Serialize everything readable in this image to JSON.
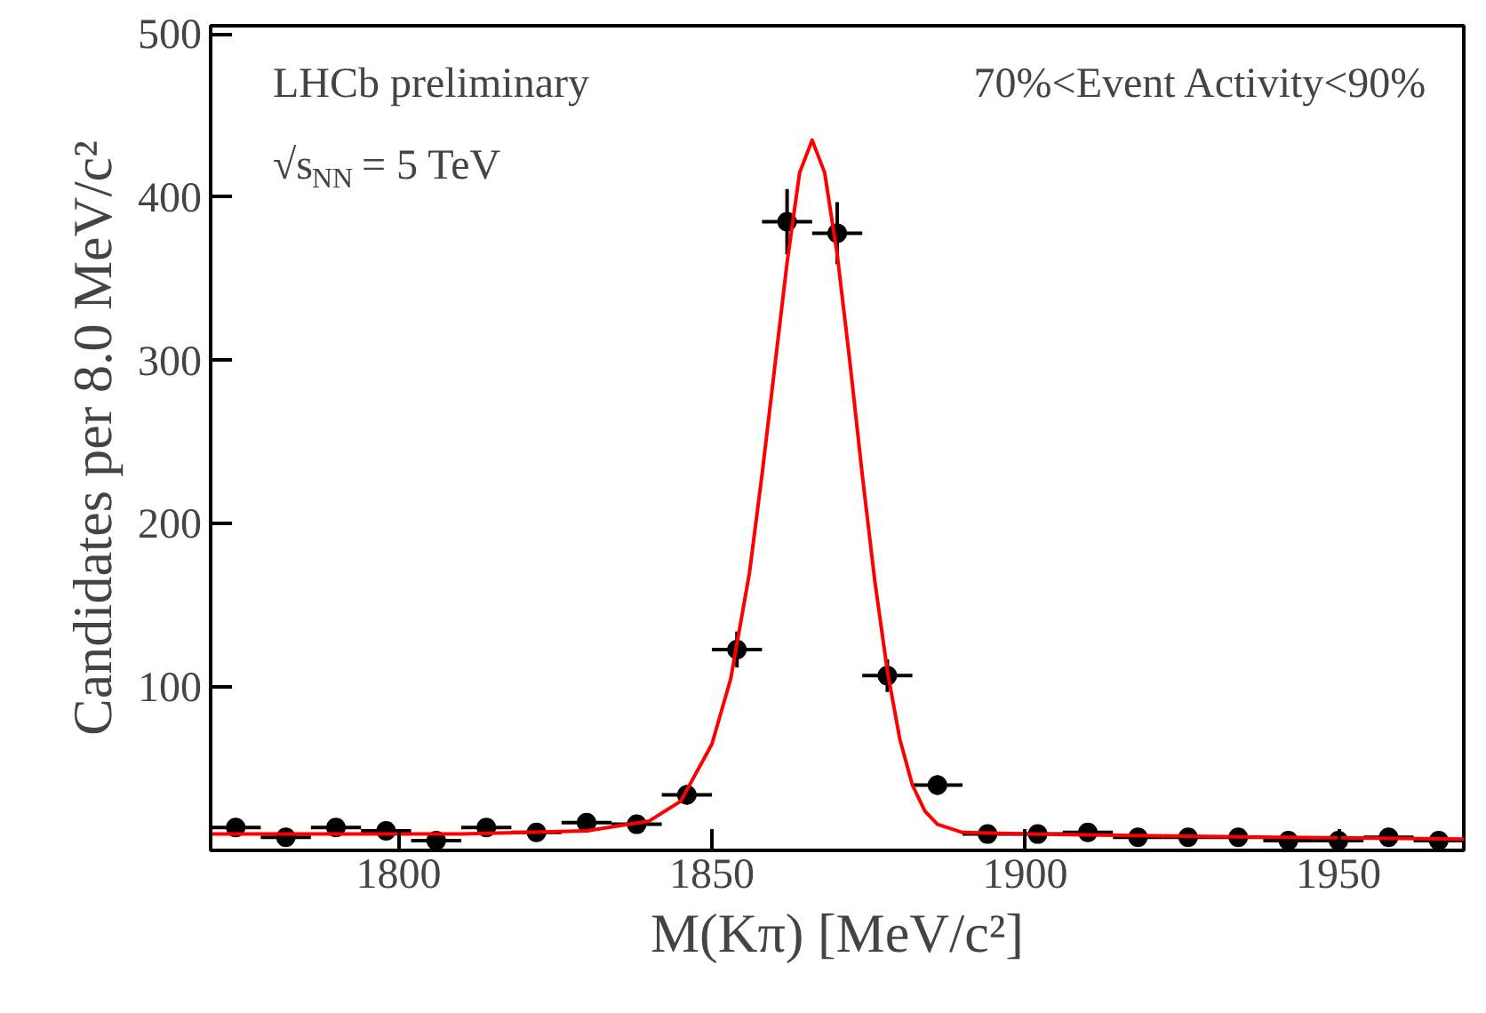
{
  "chart_data": {
    "type": "scatter",
    "xlabel": "M(Kπ) [MeV/c²]",
    "ylabel": "Candidates per 8.0 MeV/c²",
    "annotations": [
      "LHCb preliminary",
      "70%<Event Activity<90%",
      "√s$_{NN}$ = 5 TeV"
    ],
    "xlim": [
      1770,
      1970
    ],
    "xticks": [
      1800,
      1850,
      1900,
      1950
    ],
    "ylim": [
      0,
      505
    ],
    "yticks": [
      100,
      200,
      300,
      400,
      500
    ],
    "grid": false,
    "series": [
      {
        "marker": "circle",
        "color": "#000000",
        "x": [
          1774,
          1782,
          1790,
          1798,
          1806,
          1814,
          1822,
          1830,
          1838,
          1846,
          1854,
          1862,
          1870,
          1878,
          1886,
          1894,
          1902,
          1910,
          1918,
          1926,
          1934,
          1942,
          1950,
          1958,
          1966
        ],
        "values": [
          14,
          8,
          14,
          12,
          6,
          14,
          11,
          17,
          16,
          34,
          123,
          385,
          378,
          107,
          40,
          10,
          10,
          11,
          8,
          8,
          8,
          6,
          6,
          8,
          6
        ],
        "errors": [
          4,
          3,
          4,
          3,
          2,
          4,
          3,
          4,
          4,
          6,
          11,
          20,
          19,
          10,
          6,
          3,
          3,
          3,
          3,
          3,
          3,
          2,
          2,
          3,
          2
        ],
        "xerrors": [
          4,
          4,
          4,
          4,
          4,
          4,
          4,
          4,
          4,
          4,
          4,
          4,
          4,
          4,
          4,
          4,
          4,
          4,
          4,
          4,
          4,
          4,
          4,
          4,
          4
        ]
      },
      {
        "type": "line",
        "color": "#ff0000",
        "x": [
          1770,
          1790,
          1810,
          1830,
          1840,
          1845,
          1850,
          1853,
          1856,
          1858,
          1860,
          1862,
          1864,
          1866,
          1868,
          1870,
          1872,
          1874,
          1876,
          1878,
          1880,
          1882,
          1884,
          1886,
          1890,
          1900,
          1920,
          1940,
          1970
        ],
        "values": [
          10,
          10,
          10,
          12,
          18,
          30,
          65,
          105,
          170,
          230,
          295,
          360,
          415,
          435,
          415,
          365,
          300,
          230,
          165,
          110,
          68,
          40,
          24,
          16,
          11,
          10,
          9,
          8,
          7
        ]
      }
    ]
  }
}
